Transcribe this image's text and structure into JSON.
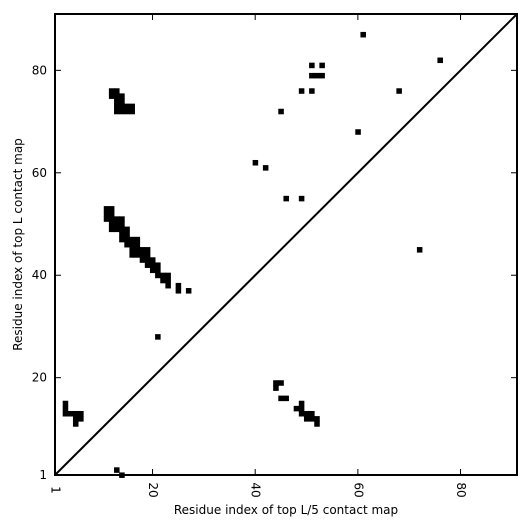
{
  "chart_data": {
    "type": "scatter",
    "title": "",
    "xlabel": "Residue index of top L/5 contact map",
    "ylabel": "Residue index of top L contact map",
    "xlim": [
      1,
      91
    ],
    "ylim": [
      1,
      91
    ],
    "x_ticks": [
      1,
      20,
      40,
      60,
      80
    ],
    "y_ticks": [
      1,
      20,
      40,
      60,
      80
    ],
    "x_tick_labels": [
      "1",
      "20",
      "40",
      "60",
      "80"
    ],
    "y_tick_labels": [
      "1",
      "20",
      "40",
      "60",
      "80"
    ],
    "grid": false,
    "legend": "none",
    "diagonal": true,
    "marker": "square",
    "marker_color": "#000000",
    "series": [
      {
        "points": [
          [
            12,
            76
          ],
          [
            13,
            76
          ],
          [
            12,
            75
          ],
          [
            13,
            75
          ],
          [
            14,
            75
          ],
          [
            13,
            74
          ],
          [
            14,
            74
          ],
          [
            13,
            73
          ],
          [
            14,
            73
          ],
          [
            15,
            73
          ],
          [
            16,
            73
          ],
          [
            13,
            72
          ],
          [
            14,
            72
          ],
          [
            15,
            72
          ],
          [
            16,
            72
          ],
          [
            11,
            53
          ],
          [
            12,
            53
          ],
          [
            11,
            52
          ],
          [
            12,
            52
          ],
          [
            11,
            51
          ],
          [
            12,
            51
          ],
          [
            13,
            51
          ],
          [
            14,
            51
          ],
          [
            12,
            50
          ],
          [
            13,
            50
          ],
          [
            14,
            50
          ],
          [
            12,
            49
          ],
          [
            13,
            49
          ],
          [
            14,
            49
          ],
          [
            15,
            49
          ],
          [
            14,
            48
          ],
          [
            15,
            48
          ],
          [
            14,
            47
          ],
          [
            15,
            47
          ],
          [
            16,
            47
          ],
          [
            17,
            47
          ],
          [
            15,
            46
          ],
          [
            16,
            46
          ],
          [
            17,
            46
          ],
          [
            16,
            45
          ],
          [
            17,
            45
          ],
          [
            18,
            45
          ],
          [
            19,
            45
          ],
          [
            16,
            44
          ],
          [
            17,
            44
          ],
          [
            18,
            44
          ],
          [
            19,
            44
          ],
          [
            18,
            43
          ],
          [
            19,
            43
          ],
          [
            20,
            43
          ],
          [
            19,
            42
          ],
          [
            20,
            42
          ],
          [
            21,
            42
          ],
          [
            20,
            41
          ],
          [
            21,
            41
          ],
          [
            21,
            40
          ],
          [
            22,
            40
          ],
          [
            23,
            40
          ],
          [
            22,
            39
          ],
          [
            23,
            39
          ],
          [
            23,
            38
          ],
          [
            25,
            38
          ],
          [
            25,
            37
          ],
          [
            27,
            37
          ],
          [
            21,
            28
          ],
          [
            40,
            62
          ],
          [
            42,
            61
          ],
          [
            46,
            55
          ],
          [
            49,
            55
          ],
          [
            45,
            72
          ],
          [
            49,
            76
          ],
          [
            51,
            76
          ],
          [
            51,
            79
          ],
          [
            52,
            79
          ],
          [
            53,
            79
          ],
          [
            51,
            81
          ],
          [
            53,
            81
          ],
          [
            61,
            87
          ],
          [
            76,
            82
          ],
          [
            68,
            76
          ],
          [
            60,
            68
          ],
          [
            3,
            15
          ],
          [
            3,
            14
          ],
          [
            3,
            13
          ],
          [
            4,
            13
          ],
          [
            5,
            13
          ],
          [
            6,
            13
          ],
          [
            5,
            12
          ],
          [
            6,
            12
          ],
          [
            5,
            11
          ],
          [
            44,
            19
          ],
          [
            45,
            19
          ],
          [
            44,
            18
          ],
          [
            45,
            16
          ],
          [
            46,
            16
          ],
          [
            48,
            14
          ],
          [
            49,
            14
          ],
          [
            49,
            15
          ],
          [
            49,
            13
          ],
          [
            50,
            13
          ],
          [
            51,
            13
          ],
          [
            50,
            12
          ],
          [
            51,
            12
          ],
          [
            52,
            12
          ],
          [
            52,
            11
          ],
          [
            72,
            45
          ],
          [
            13,
            2
          ],
          [
            14,
            1
          ]
        ]
      }
    ]
  }
}
